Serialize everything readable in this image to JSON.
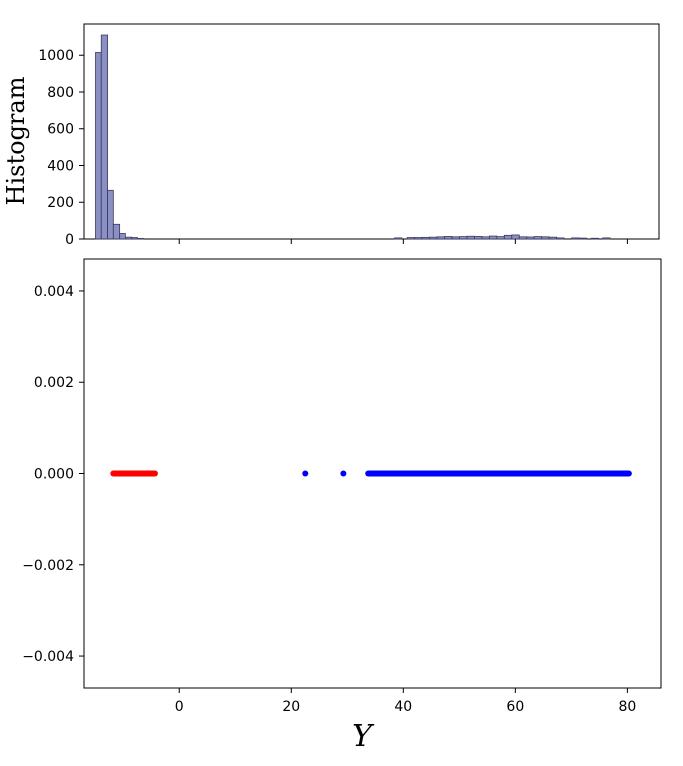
{
  "chart_data": [
    {
      "type": "bar",
      "role": "histogram",
      "ylabel": "Histogram",
      "xlim": [
        -14,
        86
      ],
      "ylim": [
        0,
        1170
      ],
      "yticks": [
        0,
        200,
        400,
        600,
        800,
        1000
      ],
      "bar_color": "#8a8fc4",
      "edge_color": "#3a3a60",
      "bins": [
        {
          "x0": -12.0,
          "x1": -11.0,
          "count": 1015
        },
        {
          "x0": -11.0,
          "x1": -9.9,
          "count": 1110
        },
        {
          "x0": -9.9,
          "x1": -8.9,
          "count": 265
        },
        {
          "x0": -8.9,
          "x1": -7.8,
          "count": 80
        },
        {
          "x0": -7.8,
          "x1": -6.8,
          "count": 30
        },
        {
          "x0": -6.8,
          "x1": -5.7,
          "count": 10
        },
        {
          "x0": -5.7,
          "x1": -4.7,
          "count": 8
        },
        {
          "x0": -4.7,
          "x1": -3.6,
          "count": 3
        },
        {
          "x0": 40.0,
          "x1": 41.3,
          "count": 6
        },
        {
          "x0": 42.2,
          "x1": 43.5,
          "count": 8
        },
        {
          "x0": 43.5,
          "x1": 44.8,
          "count": 8
        },
        {
          "x0": 44.8,
          "x1": 46.1,
          "count": 9
        },
        {
          "x0": 46.1,
          "x1": 47.4,
          "count": 10
        },
        {
          "x0": 47.4,
          "x1": 48.7,
          "count": 12
        },
        {
          "x0": 48.7,
          "x1": 50.0,
          "count": 14
        },
        {
          "x0": 50.0,
          "x1": 51.3,
          "count": 12
        },
        {
          "x0": 51.3,
          "x1": 52.6,
          "count": 13
        },
        {
          "x0": 52.6,
          "x1": 53.9,
          "count": 15
        },
        {
          "x0": 53.9,
          "x1": 55.2,
          "count": 14
        },
        {
          "x0": 55.2,
          "x1": 56.5,
          "count": 12
        },
        {
          "x0": 56.5,
          "x1": 57.8,
          "count": 16
        },
        {
          "x0": 57.8,
          "x1": 59.1,
          "count": 13
        },
        {
          "x0": 59.1,
          "x1": 60.4,
          "count": 20
        },
        {
          "x0": 60.4,
          "x1": 61.7,
          "count": 22
        },
        {
          "x0": 61.7,
          "x1": 63.0,
          "count": 12
        },
        {
          "x0": 63.0,
          "x1": 64.3,
          "count": 11
        },
        {
          "x0": 64.3,
          "x1": 65.6,
          "count": 13
        },
        {
          "x0": 65.6,
          "x1": 66.9,
          "count": 12
        },
        {
          "x0": 66.9,
          "x1": 68.2,
          "count": 10
        },
        {
          "x0": 68.2,
          "x1": 69.5,
          "count": 6
        },
        {
          "x0": 70.8,
          "x1": 72.1,
          "count": 6
        },
        {
          "x0": 72.1,
          "x1": 73.4,
          "count": 5
        },
        {
          "x0": 74.2,
          "x1": 75.5,
          "count": 4
        },
        {
          "x0": 76.2,
          "x1": 77.5,
          "count": 6
        }
      ]
    },
    {
      "type": "scatter",
      "xlabel": "Y",
      "xlim": [
        -17,
        86
      ],
      "ylim": [
        -0.0047,
        0.0047
      ],
      "xticks": [
        0,
        20,
        40,
        60,
        80
      ],
      "yticks": [
        -0.004,
        -0.002,
        0.0,
        0.002,
        0.004
      ],
      "ytick_labels": [
        "−0.004",
        "−0.002",
        "0.000",
        "0.002",
        "0.004"
      ],
      "series": [
        {
          "color": "#ff0000",
          "y": 0.0,
          "x_range": [
            -12.3,
            -3.8
          ]
        },
        {
          "color": "#0000ff",
          "y": 0.0,
          "x_points": [
            22.5,
            29.3
          ],
          "x_range": [
            33.2,
            80.8
          ]
        }
      ]
    }
  ]
}
